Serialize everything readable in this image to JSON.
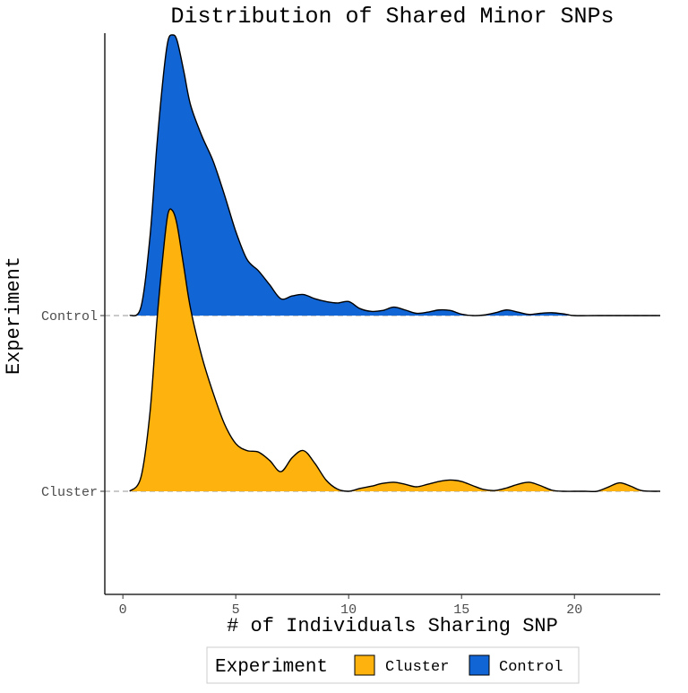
{
  "chart_data": {
    "type": "area",
    "subtype": "ridgeline-density",
    "title": "Distribution of Shared Minor SNPs",
    "xlabel": "# of Individuals Sharing SNP",
    "ylabel": "Experiment",
    "xlim": [
      -0.8,
      23.8
    ],
    "x_ticks": [
      0,
      5,
      10,
      15,
      20
    ],
    "categories": [
      "Cluster",
      "Control"
    ],
    "legend": {
      "title": "Experiment",
      "position": "bottom",
      "items": [
        {
          "label": "Cluster",
          "color": "#FDB20D"
        },
        {
          "label": "Control",
          "color": "#1265D5"
        }
      ]
    },
    "series": [
      {
        "name": "Control",
        "color": "#1265D5",
        "x": [
          0.3,
          0.8,
          1.2,
          1.5,
          1.8,
          2.0,
          2.2,
          2.4,
          2.7,
          3.0,
          3.5,
          4.0,
          4.5,
          5.0,
          5.5,
          6.0,
          6.5,
          7.0,
          7.5,
          8.0,
          8.5,
          9.0,
          9.5,
          10.0,
          10.5,
          11.0,
          11.5,
          12.0,
          12.5,
          13.0,
          13.5,
          14.0,
          14.5,
          15.0,
          15.5,
          16.0,
          16.5,
          17.0,
          17.5,
          18.0,
          18.5,
          19.0,
          19.5,
          20.0,
          21.0,
          22.0,
          23.8
        ],
        "y": [
          0.0,
          0.03,
          0.28,
          0.6,
          0.86,
          0.98,
          1.0,
          0.98,
          0.87,
          0.75,
          0.64,
          0.55,
          0.43,
          0.3,
          0.2,
          0.16,
          0.11,
          0.06,
          0.07,
          0.075,
          0.06,
          0.05,
          0.045,
          0.05,
          0.025,
          0.015,
          0.018,
          0.03,
          0.02,
          0.008,
          0.012,
          0.02,
          0.018,
          0.005,
          0.0,
          0.002,
          0.01,
          0.02,
          0.012,
          0.004,
          0.008,
          0.01,
          0.006,
          0.0,
          0.0,
          0.0,
          0.0
        ]
      },
      {
        "name": "Cluster",
        "color": "#FDB20D",
        "x": [
          0.3,
          0.8,
          1.2,
          1.5,
          1.8,
          2.0,
          2.2,
          2.4,
          2.7,
          3.0,
          3.5,
          4.0,
          4.5,
          5.0,
          5.5,
          6.0,
          6.5,
          7.0,
          7.5,
          8.0,
          8.5,
          9.0,
          9.5,
          10.0,
          10.5,
          11.0,
          11.5,
          12.0,
          12.5,
          13.0,
          13.5,
          14.0,
          14.5,
          15.0,
          15.5,
          16.0,
          16.5,
          17.0,
          17.5,
          18.0,
          18.5,
          19.0,
          19.5,
          20.0,
          20.5,
          21.0,
          21.5,
          22.0,
          22.5,
          23.0,
          23.8
        ],
        "y": [
          0.0,
          0.05,
          0.28,
          0.6,
          0.86,
          0.99,
          1.0,
          0.95,
          0.8,
          0.65,
          0.48,
          0.35,
          0.24,
          0.17,
          0.145,
          0.14,
          0.11,
          0.07,
          0.12,
          0.145,
          0.1,
          0.04,
          0.008,
          0.0,
          0.01,
          0.018,
          0.028,
          0.032,
          0.025,
          0.016,
          0.025,
          0.035,
          0.04,
          0.035,
          0.02,
          0.006,
          0.003,
          0.012,
          0.025,
          0.032,
          0.02,
          0.004,
          0.0,
          0.0,
          0.0,
          0.0,
          0.015,
          0.03,
          0.018,
          0.002,
          0.0
        ]
      }
    ]
  }
}
